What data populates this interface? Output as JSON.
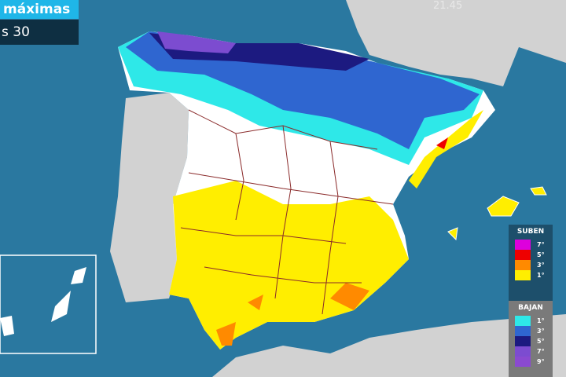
{
  "header": {
    "title": "máximas",
    "subtitle": "s 30",
    "time": "21.45"
  },
  "colors": {
    "sea": "#2a78a0",
    "land": "#d2d2d2",
    "cold_1": "#2ee8e8",
    "cold_3": "#2f66d0",
    "cold_5": "#1c1a80",
    "cold_7": "#7c4cd0",
    "warm_1": "#ffee00",
    "warm_3": "#ff8a00",
    "warm_5": "#ee0000",
    "warm_7": "#dd00dd"
  },
  "legend": {
    "up_title": "SUBEN",
    "up": [
      {
        "label": "7°",
        "color": "#dd00dd"
      },
      {
        "label": "5°",
        "color": "#ee0000"
      },
      {
        "label": "3°",
        "color": "#ff8a00"
      },
      {
        "label": "1°",
        "color": "#ffee00"
      }
    ],
    "down_title": "BAJAN",
    "down": [
      {
        "label": "1°",
        "color": "#2ee8e8"
      },
      {
        "label": "3°",
        "color": "#2f66d0"
      },
      {
        "label": "5°",
        "color": "#1c1a80"
      },
      {
        "label": "7°",
        "color": "#7c4cd0"
      },
      {
        "label": "9°",
        "color": "#8a4ad0"
      }
    ]
  }
}
